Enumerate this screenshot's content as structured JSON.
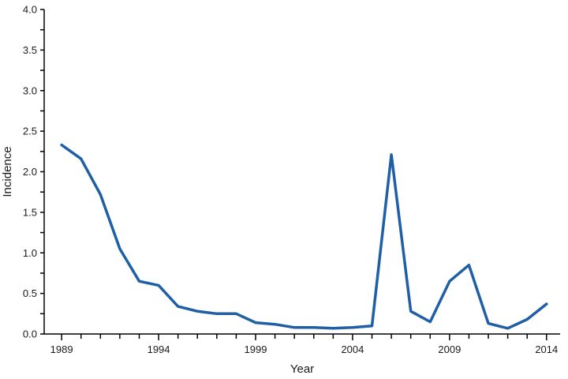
{
  "chart_data": {
    "type": "line",
    "xlabel": "Year",
    "ylabel": "Incidence",
    "xlim": [
      1988.1,
      2014.7
    ],
    "ylim": [
      0,
      4.0
    ],
    "y_ticks": [
      0,
      0.5,
      1.0,
      1.5,
      2.0,
      2.5,
      3.0,
      3.5,
      4.0
    ],
    "y_tick_labels": [
      "0.0",
      "0.5",
      "1.0",
      "1.5",
      "2.0",
      "2.5",
      "3.0",
      "3.5",
      "4.0"
    ],
    "x_major_ticks": [
      1989,
      1994,
      1999,
      2004,
      2009,
      2014
    ],
    "x_tick_labels": [
      "1989",
      "1994",
      "1999",
      "2004",
      "2009",
      "2014"
    ],
    "series_color": "#1f5fa6",
    "grid": false,
    "series": [
      {
        "x": [
          1989,
          1990,
          1991,
          1992,
          1993,
          1994,
          1995,
          1996,
          1997,
          1998,
          1999,
          2000,
          2001,
          2002,
          2003,
          2004,
          2005,
          2006,
          2007,
          2008,
          2009,
          2010,
          2011,
          2012,
          2013,
          2014
        ],
        "values": [
          2.33,
          2.16,
          1.72,
          1.05,
          0.65,
          0.6,
          0.34,
          0.28,
          0.25,
          0.25,
          0.14,
          0.12,
          0.08,
          0.08,
          0.07,
          0.08,
          0.1,
          2.21,
          0.28,
          0.15,
          0.65,
          0.85,
          0.13,
          0.07,
          0.18,
          0.37
        ]
      }
    ]
  }
}
